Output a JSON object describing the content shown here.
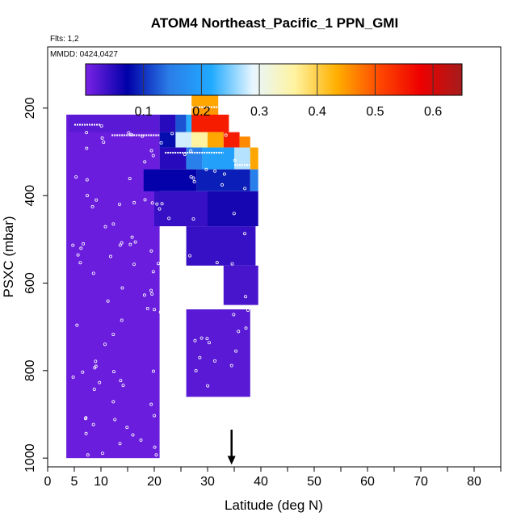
{
  "chart_data": {
    "type": "heatmap",
    "title": "ATOM4 Northeast_Pacific_1 PPN_GMI",
    "flights_label": "Flts: 1,2",
    "mmdd_label": "MMDD: 0424,0427",
    "xlabel": "Latitude (deg N)",
    "ylabel": "PSXC (mbar)",
    "xlim": [
      0,
      85
    ],
    "ylim": [
      1020,
      60
    ],
    "x_ticks": [
      0,
      5,
      10,
      20,
      30,
      40,
      50,
      60,
      70,
      80
    ],
    "y_ticks": [
      200,
      400,
      600,
      800,
      1000
    ],
    "colorbar": {
      "range": [
        0,
        0.65
      ],
      "ticks": [
        0.1,
        0.2,
        0.3,
        0.4,
        0.5,
        0.6
      ],
      "colors": [
        "#7b22e6",
        "#0000a8",
        "#2b7de8",
        "#20aaff",
        "#e8f6ff",
        "#fff3a0",
        "#ffb000",
        "#ff4a00",
        "#ee0000",
        "#a51c1c"
      ]
    },
    "column_profiles": [
      {
        "lat_start": 3.5,
        "lat_end": 21,
        "p_top": 215,
        "p_bottom": 1000,
        "value": 0.01
      },
      {
        "lat_start": 4,
        "lat_end": 21,
        "p_top": 215,
        "p_bottom": 255,
        "value": 0.02
      },
      {
        "lat_start": 21,
        "lat_end": 24,
        "p_top": 215,
        "p_bottom": 255,
        "value": 0.05
      },
      {
        "lat_start": 24,
        "lat_end": 26,
        "p_top": 215,
        "p_bottom": 255,
        "value": 0.12
      },
      {
        "lat_start": 26,
        "lat_end": 28,
        "p_top": 215,
        "p_bottom": 255,
        "value": 0.22
      },
      {
        "lat_start": 27,
        "lat_end": 32,
        "p_top": 165,
        "p_bottom": 195,
        "value": 0.44
      },
      {
        "lat_start": 27,
        "lat_end": 32,
        "p_top": 195,
        "p_bottom": 215,
        "value": 0.45
      },
      {
        "lat_start": 27,
        "lat_end": 34,
        "p_top": 215,
        "p_bottom": 255,
        "value": 0.55
      },
      {
        "lat_start": 21,
        "lat_end": 24,
        "p_top": 255,
        "p_bottom": 290,
        "value": 0.08
      },
      {
        "lat_start": 24,
        "lat_end": 27,
        "p_top": 255,
        "p_bottom": 290,
        "value": 0.28
      },
      {
        "lat_start": 27,
        "lat_end": 30,
        "p_top": 255,
        "p_bottom": 290,
        "value": 0.36
      },
      {
        "lat_start": 30,
        "lat_end": 33,
        "p_top": 255,
        "p_bottom": 290,
        "value": 0.44
      },
      {
        "lat_start": 33,
        "lat_end": 36,
        "p_top": 255,
        "p_bottom": 290,
        "value": 0.55
      },
      {
        "lat_start": 36,
        "lat_end": 38,
        "p_top": 265,
        "p_bottom": 300,
        "value": 0.46
      },
      {
        "lat_start": 21,
        "lat_end": 26,
        "p_top": 290,
        "p_bottom": 340,
        "value": 0.05
      },
      {
        "lat_start": 26,
        "lat_end": 29,
        "p_top": 290,
        "p_bottom": 340,
        "value": 0.15
      },
      {
        "lat_start": 29,
        "lat_end": 35,
        "p_top": 290,
        "p_bottom": 340,
        "value": 0.2
      },
      {
        "lat_start": 35,
        "lat_end": 38,
        "p_top": 290,
        "p_bottom": 340,
        "value": 0.27
      },
      {
        "lat_start": 38,
        "lat_end": 39.5,
        "p_top": 290,
        "p_bottom": 340,
        "value": 0.44
      },
      {
        "lat_start": 18,
        "lat_end": 28,
        "p_top": 340,
        "p_bottom": 390,
        "value": 0.07
      },
      {
        "lat_start": 28,
        "lat_end": 38,
        "p_top": 340,
        "p_bottom": 390,
        "value": 0.09
      },
      {
        "lat_start": 38,
        "lat_end": 39.5,
        "p_top": 340,
        "p_bottom": 390,
        "value": 0.15
      },
      {
        "lat_start": 20,
        "lat_end": 30,
        "p_top": 390,
        "p_bottom": 470,
        "value": 0.04
      },
      {
        "lat_start": 30,
        "lat_end": 39.5,
        "p_top": 390,
        "p_bottom": 470,
        "value": 0.06
      },
      {
        "lat_start": 26,
        "lat_end": 39,
        "p_top": 470,
        "p_bottom": 560,
        "value": 0.04
      },
      {
        "lat_start": 33,
        "lat_end": 39.5,
        "p_top": 560,
        "p_bottom": 650,
        "value": 0.03
      },
      {
        "lat_start": 26,
        "lat_end": 38,
        "p_top": 660,
        "p_bottom": 860,
        "value": 0.02
      }
    ],
    "markers": {
      "type": "open-circle",
      "label": "flight sample"
    },
    "arrow": {
      "latitude": 34.5,
      "label": "down-arrow-marker"
    }
  }
}
